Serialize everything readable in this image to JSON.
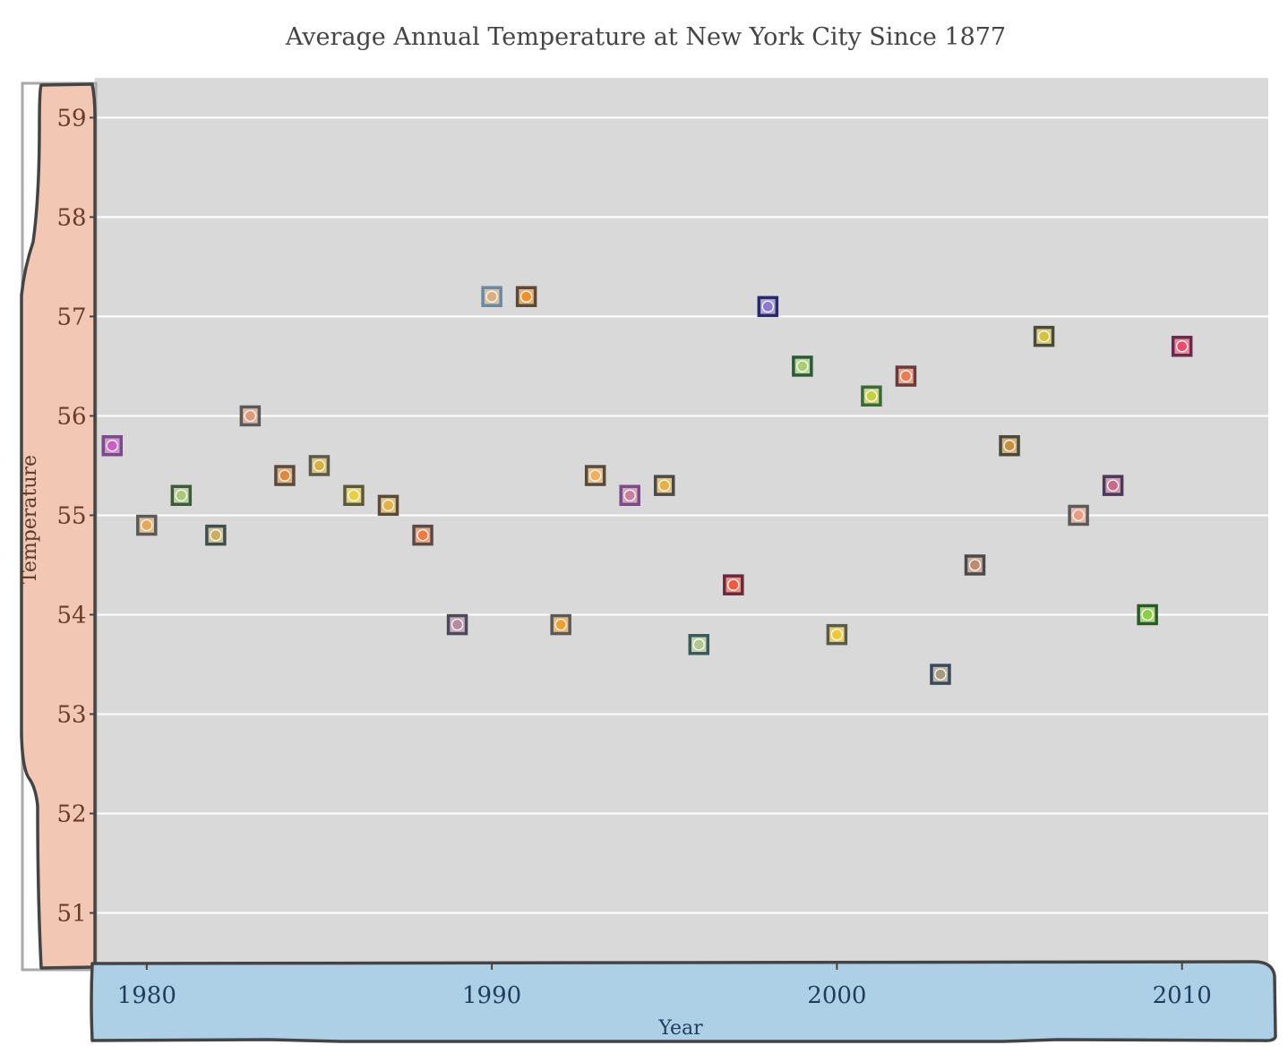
{
  "chart_data": {
    "type": "scatter",
    "title": "Average Annual Temperature at New York City Since 1877",
    "xlabel": "Year",
    "ylabel": "Temperature",
    "xlim": [
      1978.5,
      2012.5
    ],
    "ylim": [
      50.5,
      59.4
    ],
    "xticks": [
      1980,
      1990,
      2000,
      2010
    ],
    "yticks": [
      51,
      52,
      53,
      54,
      55,
      56,
      57,
      58,
      59
    ],
    "grid": "horizontal",
    "legend": "none",
    "colors": {
      "plot_background": "#d9d9d9",
      "gridline": "#ffffff",
      "y_axis_panel": "#f2c8b4",
      "x_axis_panel": "#aed0e6",
      "panel_outline": "#444444",
      "y_tick_text": "#6b3b2a",
      "x_tick_text": "#1f3d5a",
      "title_text": "#444444"
    },
    "points": [
      {
        "x": 1979,
        "y": 55.7,
        "fill": "#c95fc0",
        "border": "#7a4a8a"
      },
      {
        "x": 1980,
        "y": 54.9,
        "fill": "#e8a75a",
        "border": "#5a5a5a"
      },
      {
        "x": 1981,
        "y": 55.2,
        "fill": "#a8c87a",
        "border": "#3f5a3f"
      },
      {
        "x": 1982,
        "y": 54.8,
        "fill": "#c8b060",
        "border": "#3f4f4f"
      },
      {
        "x": 1983,
        "y": 56.0,
        "fill": "#e09a7a",
        "border": "#5a5a5a"
      },
      {
        "x": 1984,
        "y": 55.4,
        "fill": "#e08a40",
        "border": "#5a4a3a"
      },
      {
        "x": 1985,
        "y": 55.5,
        "fill": "#d8b040",
        "border": "#5a5a4a"
      },
      {
        "x": 1986,
        "y": 55.2,
        "fill": "#e8d040",
        "border": "#5a5a3a"
      },
      {
        "x": 1987,
        "y": 55.1,
        "fill": "#e8b040",
        "border": "#5a4a3a"
      },
      {
        "x": 1988,
        "y": 54.8,
        "fill": "#f07a40",
        "border": "#5a4a4a"
      },
      {
        "x": 1989,
        "y": 53.9,
        "fill": "#b88aa0",
        "border": "#4a4a5a"
      },
      {
        "x": 1990,
        "y": 57.2,
        "fill": "#d8b080",
        "border": "#6a8aa0"
      },
      {
        "x": 1991,
        "y": 57.2,
        "fill": "#f0902a",
        "border": "#5a4a3a"
      },
      {
        "x": 1992,
        "y": 53.9,
        "fill": "#f0a030",
        "border": "#5a5a5a"
      },
      {
        "x": 1993,
        "y": 55.4,
        "fill": "#f0b060",
        "border": "#5a4a3a"
      },
      {
        "x": 1994,
        "y": 55.2,
        "fill": "#c880a0",
        "border": "#7a4a8a"
      },
      {
        "x": 1995,
        "y": 55.3,
        "fill": "#e8b040",
        "border": "#4a4a4a"
      },
      {
        "x": 1996,
        "y": 53.7,
        "fill": "#b0c890",
        "border": "#3a5a5a"
      },
      {
        "x": 1997,
        "y": 54.3,
        "fill": "#f05a40",
        "border": "#6a2a3a"
      },
      {
        "x": 1998,
        "y": 57.1,
        "fill": "#8a7ad0",
        "border": "#2a2a6a"
      },
      {
        "x": 1999,
        "y": 56.5,
        "fill": "#a8d070",
        "border": "#2a5a3a"
      },
      {
        "x": 2000,
        "y": 53.8,
        "fill": "#f0c830",
        "border": "#5a5a4a"
      },
      {
        "x": 2001,
        "y": 56.2,
        "fill": "#c8d040",
        "border": "#3a6a3a"
      },
      {
        "x": 2002,
        "y": 56.4,
        "fill": "#f07a50",
        "border": "#6a3a3a"
      },
      {
        "x": 2003,
        "y": 53.4,
        "fill": "#a89a80",
        "border": "#3a4a5a"
      },
      {
        "x": 2004,
        "y": 54.5,
        "fill": "#c08a70",
        "border": "#4a4a4a"
      },
      {
        "x": 2005,
        "y": 55.7,
        "fill": "#c8903a",
        "border": "#4a4a3a"
      },
      {
        "x": 2006,
        "y": 56.8,
        "fill": "#d8c040",
        "border": "#4a4a3a"
      },
      {
        "x": 2007,
        "y": 55.0,
        "fill": "#f09a80",
        "border": "#5a5a5a"
      },
      {
        "x": 2008,
        "y": 55.3,
        "fill": "#c86a8a",
        "border": "#4a3a5a"
      },
      {
        "x": 2009,
        "y": 54.0,
        "fill": "#8ad040",
        "border": "#2a5a2a"
      },
      {
        "x": 2010,
        "y": 56.7,
        "fill": "#f04a6a",
        "border": "#6a2a4a"
      }
    ]
  }
}
